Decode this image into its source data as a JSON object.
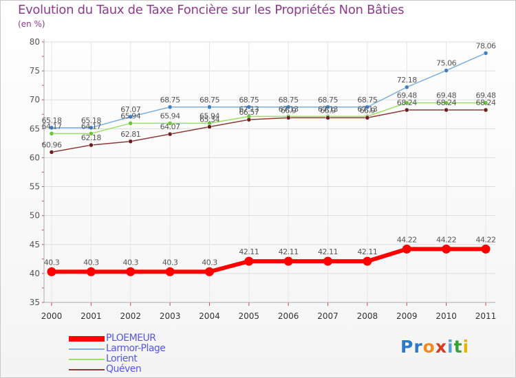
{
  "header": {
    "title": "Evolution du Taux de Taxe Foncière sur les Propriétés Non Bâties",
    "unit": "(en %)"
  },
  "logo": {
    "text": "Proxiti",
    "letter_colors": [
      "#2d78c8",
      "#2d78c8",
      "#f08c1e",
      "#d93a1e",
      "#5aa0d8",
      "#3aa034",
      "#e8b400"
    ]
  },
  "chart_data": {
    "type": "line",
    "title": "Evolution du Taux de Taxe Foncière sur les Propriétés Non Bâties",
    "ylabel": "(en %)",
    "xlabel": "",
    "ylim": [
      35,
      80
    ],
    "yticks": [
      35,
      40,
      45,
      50,
      55,
      60,
      65,
      70,
      75,
      80
    ],
    "categories": [
      "2000",
      "2001",
      "2002",
      "2003",
      "2004",
      "2005",
      "2006",
      "2007",
      "2008",
      "2009",
      "2010",
      "2011"
    ],
    "grid": true,
    "legend_position": "bottom-left",
    "series": [
      {
        "name": "PLOEMEUR",
        "color": "#ff0000",
        "point_color": "#ff0000",
        "values": [
          40.3,
          40.3,
          40.3,
          40.3,
          40.3,
          42.11,
          42.11,
          42.11,
          42.11,
          44.22,
          44.22,
          44.22
        ],
        "labels": [
          "40.3",
          "40.3",
          "40.3",
          "40.3",
          "40.3",
          "42.11",
          "42.11",
          "42.11",
          "42.11",
          "44.22",
          "44.22",
          "44.22"
        ]
      },
      {
        "name": "Larmor-Plage",
        "color": "#7aaee0",
        "point_color": "#3c7fc4",
        "values": [
          65.18,
          65.18,
          67.07,
          68.75,
          68.75,
          68.75,
          68.75,
          68.75,
          68.75,
          72.18,
          75.06,
          78.06
        ],
        "labels": [
          "65.18",
          "65.18",
          "67.07",
          "68.75",
          "68.75",
          "68.75",
          "68.75",
          "68.75",
          "68.75",
          "72.18",
          "75.06",
          "78.06"
        ]
      },
      {
        "name": "Lorient",
        "color": "#99e066",
        "point_color": "#6ec23c",
        "values": [
          64.17,
          64.17,
          65.94,
          65.94,
          65.94,
          67.13,
          67.13,
          67.13,
          67.13,
          69.48,
          69.48,
          69.48
        ],
        "labels": [
          "64.17",
          "64.17",
          "65.94",
          "65.94",
          "65.94",
          "67.13",
          "67.13",
          "67.13",
          "67.13",
          "69.48",
          "69.48",
          "69.48"
        ]
      },
      {
        "name": "Quéven",
        "color": "#8b3a3a",
        "point_color": "#6b1e1e",
        "values": [
          60.96,
          62.18,
          62.81,
          64.07,
          65.34,
          66.57,
          66.9,
          66.9,
          66.9,
          68.24,
          68.24,
          68.24
        ],
        "labels": [
          "60.96",
          "62.18",
          "62.81",
          "64.07",
          "65.34",
          "66.57",
          "66.9",
          "66.9",
          "66.9",
          "68.24",
          "68.24",
          "68.24"
        ]
      }
    ]
  }
}
